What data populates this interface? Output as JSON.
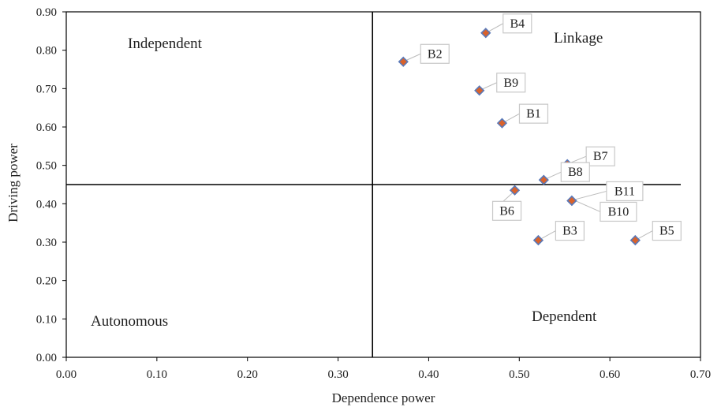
{
  "chart_data": {
    "type": "scatter",
    "title": "",
    "xlabel": "Dependence power",
    "ylabel": "Driving power",
    "xlim": [
      0,
      0.7
    ],
    "ylim": [
      0,
      0.9
    ],
    "x_ticks": [
      "0.00",
      "0.10",
      "0.20",
      "0.30",
      "0.40",
      "0.50",
      "0.60",
      "0.70"
    ],
    "y_ticks": [
      "0.00",
      "0.10",
      "0.20",
      "0.30",
      "0.40",
      "0.50",
      "0.60",
      "0.70",
      "0.80",
      "0.90"
    ],
    "divider_x": 0.338,
    "divider_y": 0.45,
    "quadrants": {
      "top_left": "Independent",
      "top_right": "Linkage",
      "bottom_left": "Autonomous",
      "bottom_right": "Dependent"
    },
    "points": [
      {
        "label": "B1",
        "x": 0.481,
        "y": 0.61
      },
      {
        "label": "B2",
        "x": 0.372,
        "y": 0.77
      },
      {
        "label": "B3",
        "x": 0.521,
        "y": 0.305
      },
      {
        "label": "B4",
        "x": 0.463,
        "y": 0.845
      },
      {
        "label": "B5",
        "x": 0.628,
        "y": 0.305
      },
      {
        "label": "B6",
        "x": 0.495,
        "y": 0.435
      },
      {
        "label": "B7",
        "x": 0.553,
        "y": 0.503
      },
      {
        "label": "B8",
        "x": 0.527,
        "y": 0.462
      },
      {
        "label": "B9",
        "x": 0.456,
        "y": 0.695
      },
      {
        "label": "B10",
        "x": 0.558,
        "y": 0.408
      },
      {
        "label": "B11",
        "x": 0.558,
        "y": 0.408
      }
    ],
    "marker_fill": "#d9622b",
    "marker_stroke": "#5a79b8",
    "grid": false
  }
}
